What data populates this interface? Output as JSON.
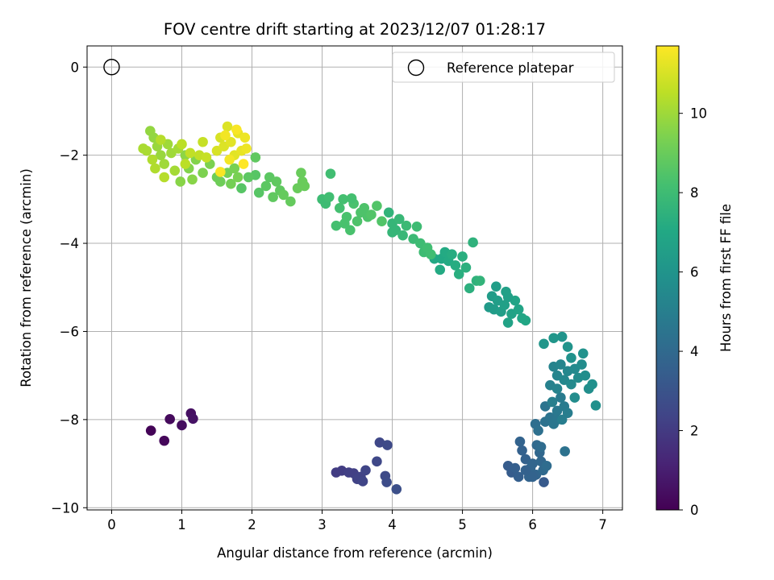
{
  "chart_data": {
    "type": "scatter",
    "title": "FOV centre drift starting at 2023/12/07 01:28:17",
    "xlabel": "Angular distance from reference (arcmin)",
    "ylabel": "Rotation from reference (arcmin)",
    "xlim": [
      -0.35,
      7.28
    ],
    "ylim": [
      -10.05,
      0.48
    ],
    "xticks": [
      0,
      1,
      2,
      3,
      4,
      5,
      6,
      7
    ],
    "yticks": [
      0,
      -2,
      -4,
      -6,
      -8,
      -10
    ],
    "grid": true,
    "legend": {
      "position": "top-right",
      "entries": [
        "Reference platepar"
      ]
    },
    "reference_point": {
      "x": 0,
      "y": 0,
      "label": "Reference platepar"
    },
    "colorbar": {
      "label": "Hours from first FF file",
      "range": [
        0,
        11.7
      ],
      "ticks": [
        0,
        2,
        4,
        6,
        8,
        10
      ],
      "colormap": "viridis"
    },
    "series": [
      {
        "points": [
          {
            "x": 0.56,
            "y": -8.25,
            "c": 0.1
          },
          {
            "x": 0.75,
            "y": -8.48,
            "c": 0.2
          },
          {
            "x": 0.83,
            "y": -7.99,
            "c": 0.3
          },
          {
            "x": 1.0,
            "y": -8.13,
            "c": 0.4
          },
          {
            "x": 1.13,
            "y": -7.86,
            "c": 0.5
          },
          {
            "x": 1.16,
            "y": -7.98,
            "c": 0.6
          },
          {
            "x": 3.2,
            "y": -9.2,
            "c": 2.1
          },
          {
            "x": 3.28,
            "y": -9.16,
            "c": 2.1
          },
          {
            "x": 3.38,
            "y": -9.2,
            "c": 2.2
          },
          {
            "x": 3.45,
            "y": -9.22,
            "c": 2.2
          },
          {
            "x": 3.5,
            "y": -9.35,
            "c": 2.3
          },
          {
            "x": 3.55,
            "y": -9.3,
            "c": 2.3
          },
          {
            "x": 3.58,
            "y": -9.4,
            "c": 2.4
          },
          {
            "x": 3.62,
            "y": -9.15,
            "c": 2.4
          },
          {
            "x": 3.78,
            "y": -8.95,
            "c": 2.5
          },
          {
            "x": 3.82,
            "y": -8.52,
            "c": 2.5
          },
          {
            "x": 3.93,
            "y": -8.58,
            "c": 2.6
          },
          {
            "x": 3.9,
            "y": -9.28,
            "c": 2.6
          },
          {
            "x": 3.92,
            "y": -9.42,
            "c": 2.7
          },
          {
            "x": 4.06,
            "y": -9.58,
            "c": 2.8
          },
          {
            "x": 6.16,
            "y": -9.42,
            "c": 3.3
          },
          {
            "x": 5.65,
            "y": -9.05,
            "c": 3.4
          },
          {
            "x": 5.7,
            "y": -9.2,
            "c": 3.4
          },
          {
            "x": 5.75,
            "y": -9.1,
            "c": 3.5
          },
          {
            "x": 5.8,
            "y": -9.3,
            "c": 3.5
          },
          {
            "x": 5.85,
            "y": -8.7,
            "c": 3.6
          },
          {
            "x": 5.9,
            "y": -8.9,
            "c": 3.6
          },
          {
            "x": 5.95,
            "y": -9.3,
            "c": 3.7
          },
          {
            "x": 5.82,
            "y": -8.5,
            "c": 3.7
          },
          {
            "x": 6.0,
            "y": -9.0,
            "c": 3.8
          },
          {
            "x": 6.05,
            "y": -9.25,
            "c": 3.8
          },
          {
            "x": 6.1,
            "y": -8.75,
            "c": 3.9
          },
          {
            "x": 6.12,
            "y": -8.95,
            "c": 3.9
          },
          {
            "x": 6.15,
            "y": -9.15,
            "c": 4.0
          },
          {
            "x": 6.06,
            "y": -8.58,
            "c": 4.0
          },
          {
            "x": 6.12,
            "y": -8.62,
            "c": 4.1
          },
          {
            "x": 6.2,
            "y": -9.05,
            "c": 4.1
          },
          {
            "x": 5.97,
            "y": -9.1,
            "c": 3.8
          },
          {
            "x": 6.0,
            "y": -9.3,
            "c": 3.7
          },
          {
            "x": 5.9,
            "y": -9.15,
            "c": 3.6
          },
          {
            "x": 6.04,
            "y": -8.1,
            "c": 4.2
          },
          {
            "x": 6.08,
            "y": -8.25,
            "c": 4.3
          },
          {
            "x": 6.18,
            "y": -8.05,
            "c": 4.4
          },
          {
            "x": 6.18,
            "y": -7.7,
            "c": 4.5
          },
          {
            "x": 6.25,
            "y": -7.95,
            "c": 4.5
          },
          {
            "x": 6.3,
            "y": -8.1,
            "c": 4.6
          },
          {
            "x": 6.35,
            "y": -7.8,
            "c": 4.7
          },
          {
            "x": 6.4,
            "y": -7.5,
            "c": 4.8
          },
          {
            "x": 6.45,
            "y": -7.7,
            "c": 4.8
          },
          {
            "x": 6.5,
            "y": -7.85,
            "c": 4.9
          },
          {
            "x": 6.35,
            "y": -8.0,
            "c": 4.6
          },
          {
            "x": 6.46,
            "y": -8.72,
            "c": 4.4
          },
          {
            "x": 6.42,
            "y": -8.0,
            "c": 4.9
          },
          {
            "x": 6.28,
            "y": -7.6,
            "c": 5.0
          },
          {
            "x": 6.25,
            "y": -7.22,
            "c": 5.1
          },
          {
            "x": 6.3,
            "y": -6.8,
            "c": 5.2
          },
          {
            "x": 6.35,
            "y": -7.0,
            "c": 5.3
          },
          {
            "x": 6.4,
            "y": -6.75,
            "c": 5.3
          },
          {
            "x": 6.45,
            "y": -7.1,
            "c": 5.4
          },
          {
            "x": 6.5,
            "y": -6.9,
            "c": 5.4
          },
          {
            "x": 6.55,
            "y": -7.2,
            "c": 5.5
          },
          {
            "x": 6.6,
            "y": -6.85,
            "c": 5.5
          },
          {
            "x": 6.65,
            "y": -7.05,
            "c": 5.6
          },
          {
            "x": 6.7,
            "y": -6.75,
            "c": 5.6
          },
          {
            "x": 6.75,
            "y": -7.0,
            "c": 5.7
          },
          {
            "x": 6.8,
            "y": -7.3,
            "c": 5.7
          },
          {
            "x": 6.85,
            "y": -7.2,
            "c": 5.8
          },
          {
            "x": 6.9,
            "y": -7.68,
            "c": 5.8
          },
          {
            "x": 6.72,
            "y": -6.5,
            "c": 5.9
          },
          {
            "x": 6.55,
            "y": -6.6,
            "c": 5.9
          },
          {
            "x": 6.5,
            "y": -6.35,
            "c": 6.0
          },
          {
            "x": 6.42,
            "y": -6.12,
            "c": 6.0
          },
          {
            "x": 6.3,
            "y": -6.15,
            "c": 6.1
          },
          {
            "x": 6.16,
            "y": -6.28,
            "c": 6.1
          },
          {
            "x": 6.6,
            "y": -7.5,
            "c": 5.6
          },
          {
            "x": 6.35,
            "y": -7.3,
            "c": 5.2
          },
          {
            "x": 5.38,
            "y": -5.45,
            "c": 6.3
          },
          {
            "x": 5.42,
            "y": -5.2,
            "c": 6.4
          },
          {
            "x": 5.45,
            "y": -5.5,
            "c": 6.4
          },
          {
            "x": 5.5,
            "y": -5.3,
            "c": 6.5
          },
          {
            "x": 5.55,
            "y": -5.55,
            "c": 6.5
          },
          {
            "x": 5.6,
            "y": -5.4,
            "c": 6.6
          },
          {
            "x": 5.62,
            "y": -5.1,
            "c": 6.6
          },
          {
            "x": 5.65,
            "y": -5.8,
            "c": 6.7
          },
          {
            "x": 5.7,
            "y": -5.6,
            "c": 6.7
          },
          {
            "x": 5.75,
            "y": -5.3,
            "c": 6.8
          },
          {
            "x": 5.8,
            "y": -5.5,
            "c": 6.8
          },
          {
            "x": 5.85,
            "y": -5.7,
            "c": 6.9
          },
          {
            "x": 5.9,
            "y": -5.75,
            "c": 6.9
          },
          {
            "x": 5.48,
            "y": -4.98,
            "c": 6.5
          },
          {
            "x": 5.65,
            "y": -5.22,
            "c": 6.6
          },
          {
            "x": 4.7,
            "y": -4.35,
            "c": 7.0
          },
          {
            "x": 4.75,
            "y": -4.2,
            "c": 7.1
          },
          {
            "x": 4.8,
            "y": -4.4,
            "c": 7.1
          },
          {
            "x": 4.85,
            "y": -4.25,
            "c": 7.2
          },
          {
            "x": 4.9,
            "y": -4.5,
            "c": 7.2
          },
          {
            "x": 4.95,
            "y": -4.7,
            "c": 7.3
          },
          {
            "x": 5.0,
            "y": -4.3,
            "c": 7.3
          },
          {
            "x": 5.05,
            "y": -4.55,
            "c": 7.4
          },
          {
            "x": 5.1,
            "y": -5.02,
            "c": 7.4
          },
          {
            "x": 5.15,
            "y": -3.98,
            "c": 7.5
          },
          {
            "x": 5.2,
            "y": -4.85,
            "c": 7.5
          },
          {
            "x": 5.25,
            "y": -4.85,
            "c": 7.6
          },
          {
            "x": 4.6,
            "y": -4.35,
            "c": 7.0
          },
          {
            "x": 4.68,
            "y": -4.6,
            "c": 7.1
          },
          {
            "x": 3.95,
            "y": -3.3,
            "c": 7.6
          },
          {
            "x": 4.0,
            "y": -3.55,
            "c": 7.7
          },
          {
            "x": 4.05,
            "y": -3.7,
            "c": 7.7
          },
          {
            "x": 4.1,
            "y": -3.45,
            "c": 7.8
          },
          {
            "x": 4.15,
            "y": -3.82,
            "c": 7.8
          },
          {
            "x": 4.2,
            "y": -3.6,
            "c": 7.9
          },
          {
            "x": 4.3,
            "y": -3.9,
            "c": 7.9
          },
          {
            "x": 4.35,
            "y": -3.62,
            "c": 8.0
          },
          {
            "x": 4.4,
            "y": -4.0,
            "c": 8.0
          },
          {
            "x": 4.45,
            "y": -4.2,
            "c": 8.0
          },
          {
            "x": 4.5,
            "y": -4.1,
            "c": 8.1
          },
          {
            "x": 4.55,
            "y": -4.25,
            "c": 8.1
          },
          {
            "x": 4.0,
            "y": -3.75,
            "c": 7.7
          },
          {
            "x": 3.0,
            "y": -3.0,
            "c": 8.0
          },
          {
            "x": 3.05,
            "y": -3.1,
            "c": 8.0
          },
          {
            "x": 3.1,
            "y": -2.95,
            "c": 8.1
          },
          {
            "x": 3.12,
            "y": -2.42,
            "c": 8.1
          },
          {
            "x": 3.2,
            "y": -3.6,
            "c": 8.2
          },
          {
            "x": 3.25,
            "y": -3.2,
            "c": 8.2
          },
          {
            "x": 3.3,
            "y": -3.0,
            "c": 8.2
          },
          {
            "x": 3.35,
            "y": -3.4,
            "c": 8.3
          },
          {
            "x": 3.4,
            "y": -3.7,
            "c": 8.3
          },
          {
            "x": 3.45,
            "y": -3.1,
            "c": 8.3
          },
          {
            "x": 3.5,
            "y": -3.5,
            "c": 8.4
          },
          {
            "x": 3.55,
            "y": -3.3,
            "c": 8.4
          },
          {
            "x": 3.6,
            "y": -3.2,
            "c": 8.4
          },
          {
            "x": 3.65,
            "y": -3.4,
            "c": 8.4
          },
          {
            "x": 3.7,
            "y": -3.35,
            "c": 8.5
          },
          {
            "x": 3.78,
            "y": -3.15,
            "c": 8.5
          },
          {
            "x": 3.85,
            "y": -3.5,
            "c": 8.5
          },
          {
            "x": 3.32,
            "y": -3.55,
            "c": 8.3
          },
          {
            "x": 3.42,
            "y": -2.98,
            "c": 8.2
          },
          {
            "x": 2.05,
            "y": -2.45,
            "c": 8.6
          },
          {
            "x": 2.1,
            "y": -2.85,
            "c": 8.6
          },
          {
            "x": 2.2,
            "y": -2.7,
            "c": 8.7
          },
          {
            "x": 2.25,
            "y": -2.5,
            "c": 8.7
          },
          {
            "x": 2.3,
            "y": -2.95,
            "c": 8.8
          },
          {
            "x": 2.35,
            "y": -2.6,
            "c": 8.8
          },
          {
            "x": 2.4,
            "y": -2.8,
            "c": 8.8
          },
          {
            "x": 2.45,
            "y": -2.9,
            "c": 8.9
          },
          {
            "x": 2.55,
            "y": -3.05,
            "c": 8.9
          },
          {
            "x": 2.65,
            "y": -2.75,
            "c": 9.0
          },
          {
            "x": 2.7,
            "y": -2.4,
            "c": 9.0
          },
          {
            "x": 2.72,
            "y": -2.6,
            "c": 9.0
          },
          {
            "x": 2.75,
            "y": -2.7,
            "c": 9.0
          },
          {
            "x": 1.85,
            "y": -2.75,
            "c": 8.6
          },
          {
            "x": 1.95,
            "y": -2.5,
            "c": 8.7
          },
          {
            "x": 2.05,
            "y": -2.05,
            "c": 8.8
          },
          {
            "x": 1.5,
            "y": -2.5,
            "c": 9.1
          },
          {
            "x": 1.55,
            "y": -2.6,
            "c": 9.1
          },
          {
            "x": 1.65,
            "y": -2.4,
            "c": 9.2
          },
          {
            "x": 1.7,
            "y": -2.65,
            "c": 9.2
          },
          {
            "x": 1.75,
            "y": -2.3,
            "c": 9.3
          },
          {
            "x": 1.8,
            "y": -2.5,
            "c": 9.3
          },
          {
            "x": 1.4,
            "y": -2.2,
            "c": 9.4
          },
          {
            "x": 1.3,
            "y": -2.4,
            "c": 9.4
          },
          {
            "x": 1.2,
            "y": -2.1,
            "c": 9.5
          },
          {
            "x": 1.1,
            "y": -2.3,
            "c": 9.5
          },
          {
            "x": 1.15,
            "y": -2.55,
            "c": 9.6
          },
          {
            "x": 0.98,
            "y": -2.6,
            "c": 9.6
          },
          {
            "x": 1.05,
            "y": -2.0,
            "c": 9.7
          },
          {
            "x": 0.55,
            "y": -1.45,
            "c": 9.8
          },
          {
            "x": 0.6,
            "y": -1.6,
            "c": 9.8
          },
          {
            "x": 0.65,
            "y": -1.8,
            "c": 9.9
          },
          {
            "x": 0.7,
            "y": -2.0,
            "c": 9.9
          },
          {
            "x": 0.75,
            "y": -2.2,
            "c": 10.0
          },
          {
            "x": 0.8,
            "y": -1.75,
            "c": 10.0
          },
          {
            "x": 0.85,
            "y": -1.95,
            "c": 10.0
          },
          {
            "x": 0.9,
            "y": -2.35,
            "c": 10.1
          },
          {
            "x": 0.95,
            "y": -1.85,
            "c": 10.1
          },
          {
            "x": 0.5,
            "y": -1.9,
            "c": 10.2
          },
          {
            "x": 0.45,
            "y": -1.85,
            "c": 10.2
          },
          {
            "x": 0.58,
            "y": -2.1,
            "c": 10.3
          },
          {
            "x": 0.62,
            "y": -2.3,
            "c": 10.3
          },
          {
            "x": 0.7,
            "y": -1.65,
            "c": 10.4
          },
          {
            "x": 0.75,
            "y": -2.5,
            "c": 10.4
          },
          {
            "x": 1.0,
            "y": -1.75,
            "c": 10.5
          },
          {
            "x": 1.05,
            "y": -2.2,
            "c": 10.5
          },
          {
            "x": 1.12,
            "y": -1.95,
            "c": 10.6
          },
          {
            "x": 1.25,
            "y": -2.0,
            "c": 10.6
          },
          {
            "x": 1.3,
            "y": -1.7,
            "c": 10.7
          },
          {
            "x": 1.35,
            "y": -2.05,
            "c": 10.7
          },
          {
            "x": 1.5,
            "y": -1.9,
            "c": 11.0
          },
          {
            "x": 1.55,
            "y": -1.6,
            "c": 11.0
          },
          {
            "x": 1.6,
            "y": -1.8,
            "c": 11.1
          },
          {
            "x": 1.65,
            "y": -1.35,
            "c": 11.1
          },
          {
            "x": 1.7,
            "y": -1.7,
            "c": 11.2
          },
          {
            "x": 1.75,
            "y": -2.0,
            "c": 11.2
          },
          {
            "x": 1.8,
            "y": -1.5,
            "c": 11.3
          },
          {
            "x": 1.85,
            "y": -1.9,
            "c": 11.3
          },
          {
            "x": 1.9,
            "y": -1.6,
            "c": 11.4
          },
          {
            "x": 1.92,
            "y": -1.85,
            "c": 11.4
          },
          {
            "x": 1.68,
            "y": -2.1,
            "c": 11.5
          },
          {
            "x": 1.62,
            "y": -1.55,
            "c": 11.5
          },
          {
            "x": 1.55,
            "y": -2.38,
            "c": 11.6
          },
          {
            "x": 1.78,
            "y": -1.42,
            "c": 11.6
          },
          {
            "x": 1.88,
            "y": -2.2,
            "c": 11.7
          }
        ]
      }
    ]
  }
}
